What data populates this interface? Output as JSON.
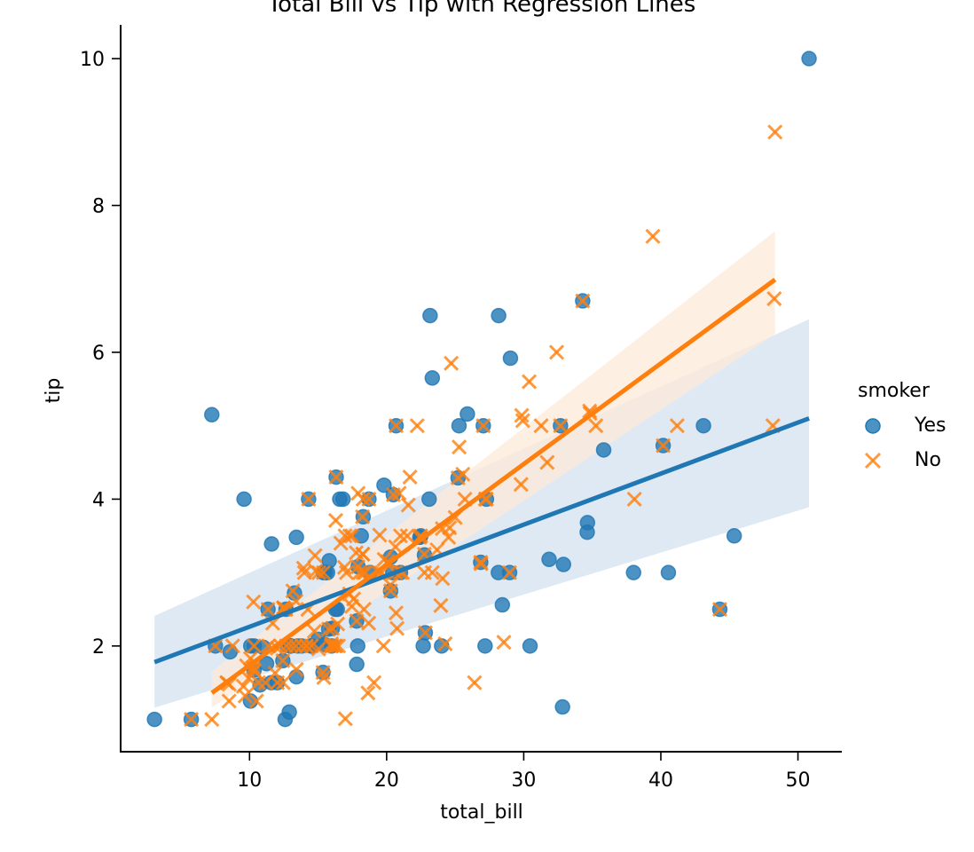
{
  "chart_data": {
    "type": "scatter",
    "title": "Total Bill vs Tip with Regression Lines",
    "xlabel": "total_bill",
    "ylabel": "tip",
    "xlim": [
      0.6,
      53.2
    ],
    "ylim": [
      0.56,
      10.46
    ],
    "xticks": [
      10,
      20,
      30,
      40,
      50
    ],
    "yticks": [
      2,
      4,
      6,
      8,
      10
    ],
    "grid": false,
    "legend": {
      "title": "smoker",
      "placement": "center-right",
      "entries": [
        "Yes",
        "No"
      ]
    },
    "colors": {
      "Yes": "#1f77b4",
      "No": "#ff7f0e",
      "Yes_band": "#dde8f3",
      "No_band": "#fde9d9"
    },
    "series": [
      {
        "name": "Yes",
        "marker": "circle",
        "points": [
          [
            38.01,
            3.0
          ],
          [
            11.24,
            1.76
          ],
          [
            20.29,
            3.21
          ],
          [
            13.81,
            2.0
          ],
          [
            11.02,
            1.98
          ],
          [
            18.29,
            3.76
          ],
          [
            3.07,
            1.0
          ],
          [
            15.01,
            2.09
          ],
          [
            26.86,
            3.14
          ],
          [
            25.28,
            5.0
          ],
          [
            17.92,
            3.08
          ],
          [
            44.3,
            2.5
          ],
          [
            22.42,
            3.48
          ],
          [
            15.36,
            1.64
          ],
          [
            20.49,
            4.06
          ],
          [
            25.21,
            4.29
          ],
          [
            14.31,
            4.0
          ],
          [
            16.04,
            2.24
          ],
          [
            17.81,
            2.34
          ],
          [
            13.0,
            2.0
          ],
          [
            12.74,
            2.01
          ],
          [
            13.0,
            2.0
          ],
          [
            16.4,
            2.5
          ],
          [
            13.42,
            3.48
          ],
          [
            16.27,
            2.5
          ],
          [
            10.09,
            2.0
          ],
          [
            20.45,
            3.0
          ],
          [
            13.28,
            2.72
          ],
          [
            24.01,
            2.0
          ],
          [
            15.69,
            3.0
          ],
          [
            11.61,
            3.39
          ],
          [
            10.77,
            1.47
          ],
          [
            15.53,
            3.0
          ],
          [
            10.07,
            1.25
          ],
          [
            12.6,
            1.0
          ],
          [
            32.83,
            1.17
          ],
          [
            35.83,
            4.67
          ],
          [
            29.03,
            5.92
          ],
          [
            27.18,
            2.0
          ],
          [
            22.67,
            2.0
          ],
          [
            17.82,
            1.75
          ],
          [
            18.78,
            3.0
          ],
          [
            50.81,
            10.0
          ],
          [
            15.81,
            3.16
          ],
          [
            7.25,
            5.15
          ],
          [
            31.85,
            3.18
          ],
          [
            16.82,
            4.0
          ],
          [
            32.9,
            3.11
          ],
          [
            17.89,
            2.0
          ],
          [
            14.48,
            2.0
          ],
          [
            34.63,
            3.55
          ],
          [
            34.65,
            3.68
          ],
          [
            23.33,
            5.65
          ],
          [
            45.35,
            3.5
          ],
          [
            23.17,
            6.5
          ],
          [
            40.55,
            3.0
          ],
          [
            20.69,
            5.0
          ],
          [
            30.46,
            2.0
          ],
          [
            18.15,
            3.5
          ],
          [
            23.1,
            4.0
          ],
          [
            11.59,
            1.5
          ],
          [
            22.49,
            3.5
          ],
          [
            28.15,
            3.0
          ],
          [
            13.42,
            1.58
          ],
          [
            16.58,
            4.0
          ],
          [
            7.51,
            2.0
          ],
          [
            16.0,
            2.0
          ],
          [
            9.6,
            4.0
          ],
          [
            34.3,
            6.7
          ],
          [
            10.34,
            2.0
          ],
          [
            25.89,
            5.16
          ],
          [
            28.44,
            2.56
          ],
          [
            15.48,
            2.02
          ],
          [
            43.11,
            5.0
          ],
          [
            13.51,
            2.0
          ],
          [
            18.71,
            4.0
          ],
          [
            12.9,
            1.1
          ],
          [
            28.17,
            6.5
          ],
          [
            12.43,
            1.8
          ],
          [
            15.77,
            2.23
          ],
          [
            27.05,
            5.0
          ],
          [
            22.82,
            2.18
          ],
          [
            10.33,
            1.67
          ],
          [
            5.75,
            1.0
          ],
          [
            16.32,
            4.3
          ],
          [
            8.58,
            1.92
          ],
          [
            40.17,
            4.73
          ],
          [
            27.28,
            4.0
          ],
          [
            12.03,
            1.5
          ],
          [
            21.01,
            3.0
          ],
          [
            11.35,
            2.5
          ],
          [
            15.38,
            3.0
          ],
          [
            32.68,
            5.0
          ],
          [
            19.81,
            4.19
          ],
          [
            28.97,
            3.0
          ],
          [
            22.76,
            3.24
          ],
          [
            14.52,
            2.0
          ],
          [
            12.66,
            2.5
          ],
          [
            13.0,
            2.0
          ],
          [
            20.29,
            2.75
          ]
        ],
        "regression": {
          "x": [
            3.07,
            50.81
          ],
          "y": [
            1.78,
            5.1
          ]
        },
        "ci_band": {
          "x": [
            3.07,
            50.81
          ],
          "lower": [
            1.16,
            3.89
          ],
          "upper": [
            2.41,
            6.45
          ]
        }
      },
      {
        "name": "No",
        "marker": "x",
        "points": [
          [
            16.99,
            1.01
          ],
          [
            10.34,
            1.66
          ],
          [
            21.01,
            3.5
          ],
          [
            23.68,
            3.31
          ],
          [
            24.59,
            3.61
          ],
          [
            25.29,
            4.71
          ],
          [
            8.77,
            2.0
          ],
          [
            26.88,
            3.12
          ],
          [
            15.04,
            1.96
          ],
          [
            14.78,
            3.23
          ],
          [
            10.27,
            1.71
          ],
          [
            35.26,
            5.0
          ],
          [
            15.42,
            1.57
          ],
          [
            18.43,
            3.0
          ],
          [
            14.83,
            3.02
          ],
          [
            21.58,
            3.92
          ],
          [
            10.33,
            1.67
          ],
          [
            16.29,
            3.71
          ],
          [
            16.97,
            3.5
          ],
          [
            20.65,
            3.35
          ],
          [
            17.92,
            4.08
          ],
          [
            20.29,
            2.75
          ],
          [
            15.77,
            2.23
          ],
          [
            39.42,
            7.58
          ],
          [
            19.82,
            3.18
          ],
          [
            17.81,
            2.34
          ],
          [
            13.37,
            2.0
          ],
          [
            12.69,
            2.0
          ],
          [
            21.7,
            4.3
          ],
          [
            19.65,
            3.0
          ],
          [
            9.55,
            1.45
          ],
          [
            18.35,
            2.5
          ],
          [
            15.06,
            3.0
          ],
          [
            20.69,
            2.45
          ],
          [
            17.78,
            3.27
          ],
          [
            24.06,
            3.6
          ],
          [
            16.31,
            2.0
          ],
          [
            16.93,
            3.07
          ],
          [
            18.69,
            2.31
          ],
          [
            31.27,
            5.0
          ],
          [
            16.04,
            2.24
          ],
          [
            17.46,
            2.54
          ],
          [
            13.94,
            3.06
          ],
          [
            9.68,
            1.32
          ],
          [
            30.4,
            5.6
          ],
          [
            18.29,
            3.0
          ],
          [
            22.23,
            5.0
          ],
          [
            32.4,
            6.0
          ],
          [
            28.55,
            2.05
          ],
          [
            18.04,
            3.0
          ],
          [
            12.54,
            2.5
          ],
          [
            10.29,
            2.6
          ],
          [
            34.81,
            5.2
          ],
          [
            9.94,
            1.56
          ],
          [
            25.56,
            4.34
          ],
          [
            19.49,
            3.51
          ],
          [
            26.41,
            1.5
          ],
          [
            48.27,
            6.73
          ],
          [
            20.08,
            3.15
          ],
          [
            16.0,
            2.0
          ],
          [
            8.35,
            1.5
          ],
          [
            18.26,
            3.25
          ],
          [
            14.15,
            2.0
          ],
          [
            12.48,
            2.52
          ],
          [
            18.71,
            4.0
          ],
          [
            12.02,
            1.97
          ],
          [
            17.07,
            3.0
          ],
          [
            26.86,
            3.14
          ],
          [
            14.73,
            2.2
          ],
          [
            10.51,
            1.25
          ],
          [
            17.92,
            3.08
          ],
          [
            27.2,
            4.0
          ],
          [
            22.76,
            3.0
          ],
          [
            17.29,
            2.71
          ],
          [
            19.44,
            3.0
          ],
          [
            16.66,
            3.4
          ],
          [
            10.07,
            1.83
          ],
          [
            32.68,
            5.0
          ],
          [
            15.98,
            2.03
          ],
          [
            34.83,
            5.17
          ],
          [
            13.03,
            2.0
          ],
          [
            18.28,
            4.0
          ],
          [
            24.71,
            5.85
          ],
          [
            21.16,
            3.0
          ],
          [
            28.97,
            3.0
          ],
          [
            22.49,
            3.5
          ],
          [
            5.75,
            1.0
          ],
          [
            16.32,
            4.3
          ],
          [
            22.75,
            3.25
          ],
          [
            40.17,
            4.73
          ],
          [
            27.28,
            4.0
          ],
          [
            12.03,
            1.5
          ],
          [
            21.01,
            3.0
          ],
          [
            12.46,
            1.5
          ],
          [
            11.35,
            2.5
          ],
          [
            15.38,
            3.0
          ],
          [
            44.3,
            2.5
          ],
          [
            22.42,
            3.48
          ],
          [
            20.92,
            4.08
          ],
          [
            15.36,
            1.64
          ],
          [
            20.49,
            4.06
          ],
          [
            25.21,
            4.29
          ],
          [
            18.24,
            3.76
          ],
          [
            14.31,
            4.0
          ],
          [
            14.0,
            3.0
          ],
          [
            7.25,
            1.0
          ],
          [
            38.07,
            4.0
          ],
          [
            23.95,
            2.55
          ],
          [
            25.71,
            4.0
          ],
          [
            17.31,
            3.5
          ],
          [
            29.93,
            5.07
          ],
          [
            10.65,
            1.5
          ],
          [
            12.43,
            1.8
          ],
          [
            24.08,
            2.92
          ],
          [
            11.69,
            2.31
          ],
          [
            13.42,
            1.68
          ],
          [
            14.26,
            2.5
          ],
          [
            15.95,
            2.0
          ],
          [
            12.48,
            2.52
          ],
          [
            29.8,
            4.2
          ],
          [
            8.52,
            1.48
          ],
          [
            14.52,
            2.0
          ],
          [
            11.38,
            2.0
          ],
          [
            22.82,
            2.18
          ],
          [
            19.08,
            1.5
          ],
          [
            20.27,
            2.83
          ],
          [
            11.17,
            1.5
          ],
          [
            12.26,
            2.0
          ],
          [
            18.26,
            3.25
          ],
          [
            8.51,
            1.25
          ],
          [
            10.33,
            2.0
          ],
          [
            14.15,
            2.0
          ],
          [
            13.16,
            2.75
          ],
          [
            17.47,
            3.5
          ],
          [
            34.3,
            6.7
          ],
          [
            41.19,
            5.0
          ],
          [
            27.05,
            5.0
          ],
          [
            16.43,
            2.3
          ],
          [
            8.35,
            1.5
          ],
          [
            18.64,
            1.36
          ],
          [
            11.87,
            1.63
          ],
          [
            9.78,
            1.73
          ],
          [
            7.51,
            2.0
          ],
          [
            19.77,
            2.0
          ],
          [
            29.85,
            5.14
          ],
          [
            48.17,
            5.0
          ],
          [
            25.0,
            3.75
          ],
          [
            13.39,
            2.61
          ],
          [
            16.49,
            2.0
          ],
          [
            21.5,
            3.5
          ],
          [
            12.66,
            2.5
          ],
          [
            16.21,
            2.0
          ],
          [
            13.81,
            2.0
          ],
          [
            24.52,
            3.48
          ],
          [
            20.76,
            2.24
          ],
          [
            31.71,
            4.5
          ],
          [
            20.69,
            5.0
          ],
          [
            24.27,
            2.03
          ],
          [
            17.59,
            2.64
          ],
          [
            48.33,
            9.0
          ],
          [
            20.65,
            3.0
          ],
          [
            23.33,
            3.0
          ]
        ],
        "regression": {
          "x": [
            7.25,
            48.33
          ],
          "y": [
            1.36,
            6.99
          ]
        },
        "ci_band": {
          "x": [
            7.25,
            48.33
          ],
          "lower": [
            1.16,
            6.25
          ],
          "upper": [
            1.65,
            7.65
          ]
        }
      }
    ]
  }
}
